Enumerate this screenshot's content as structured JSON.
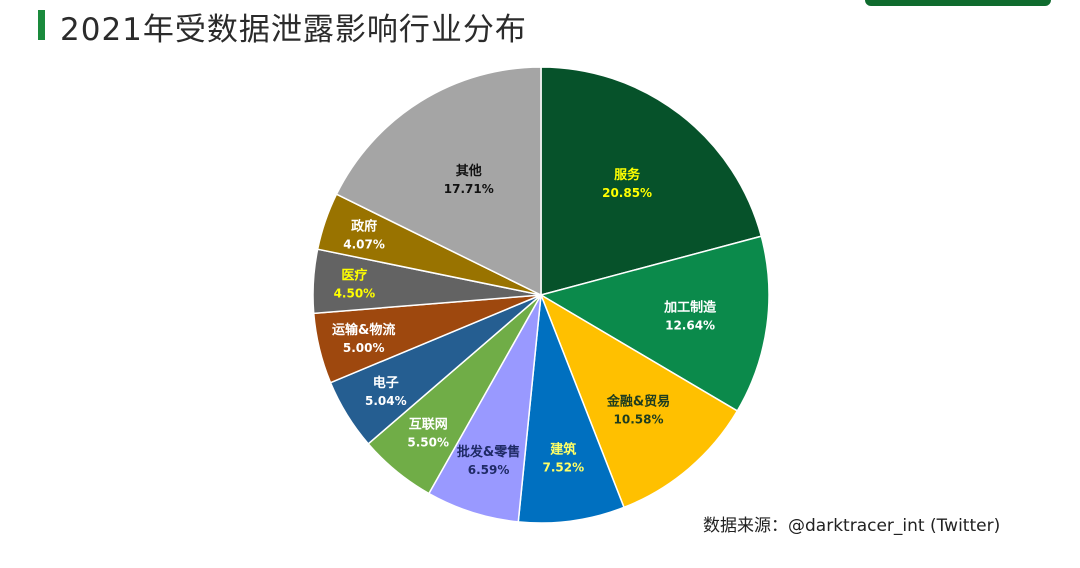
{
  "header": {
    "title": "2021年受数据泄露影响行业分布"
  },
  "footer": {
    "source": "数据来源：@darktracer_int (Twitter)"
  },
  "chart_data": {
    "type": "pie",
    "title": "2021年受数据泄露影响行业分布",
    "unit": "%",
    "start": "top, clockwise",
    "slices": [
      {
        "label": "服务",
        "value": 20.85,
        "display": "20.85%",
        "color": "#06522a",
        "text_color": "#ffff00"
      },
      {
        "label": "加工制造",
        "value": 12.64,
        "display": "12.64%",
        "color": "#0b8a4b",
        "text_color": "#ffffff"
      },
      {
        "label": "金融&贸易",
        "value": 10.58,
        "display": "10.58%",
        "color": "#ffc000",
        "text_color": "#1f3d1f"
      },
      {
        "label": "建筑",
        "value": 7.52,
        "display": "7.52%",
        "color": "#0070c0",
        "text_color": "#ffff66"
      },
      {
        "label": "批发&零售",
        "value": 6.59,
        "display": "6.59%",
        "color": "#9999ff",
        "text_color": "#1f2a66"
      },
      {
        "label": "互联网",
        "value": 5.5,
        "display": "5.50%",
        "color": "#70ad47",
        "text_color": "#ffffff"
      },
      {
        "label": "电子",
        "value": 5.04,
        "display": "5.04%",
        "color": "#255e91",
        "text_color": "#ffffff"
      },
      {
        "label": "运输&物流",
        "value": 5.0,
        "display": "5.00%",
        "color": "#9e480e",
        "text_color": "#ffffff"
      },
      {
        "label": "医疗",
        "value": 4.5,
        "display": "4.50%",
        "color": "#636363",
        "text_color": "#ffff00"
      },
      {
        "label": "政府",
        "value": 4.07,
        "display": "4.07%",
        "color": "#997300",
        "text_color": "#ffffff"
      },
      {
        "label": "其他",
        "value": 17.71,
        "display": "17.71%",
        "color": "#a5a5a5",
        "text_color": "#111111"
      }
    ]
  }
}
